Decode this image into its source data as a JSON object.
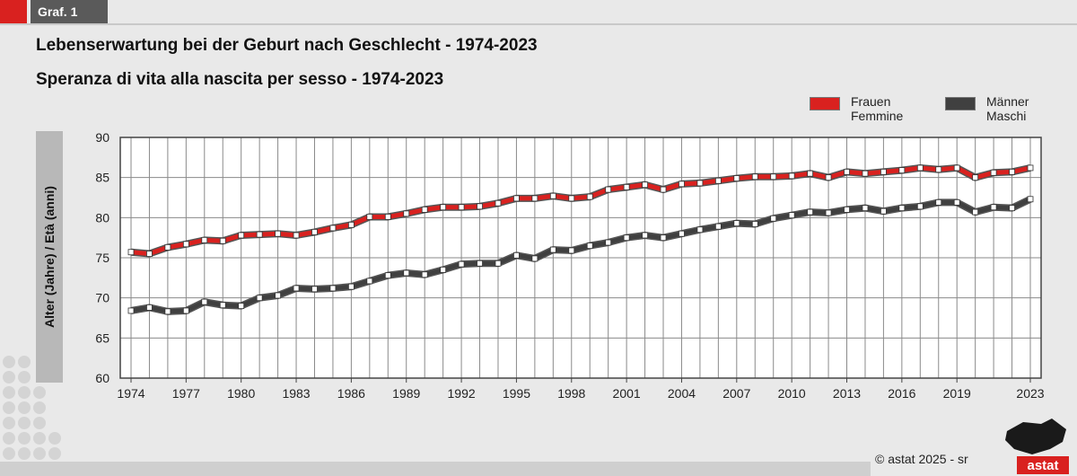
{
  "header": {
    "tag": "Graf. 1"
  },
  "chart_data": {
    "type": "line",
    "title": "Lebenserwartung bei der Geburt nach Geschlecht - 1974-2023",
    "subtitle": "Speranza di vita alla nascita per sesso - 1974-2023",
    "ylabel": "Alter  (Jahre) / Età (anni)",
    "xlabel": "",
    "ylim": [
      60,
      90
    ],
    "yticks": [
      60,
      65,
      70,
      75,
      80,
      85,
      90
    ],
    "xticks": [
      1974,
      1977,
      1980,
      1983,
      1986,
      1989,
      1992,
      1995,
      1998,
      2001,
      2004,
      2007,
      2010,
      2013,
      2016,
      2019,
      2023
    ],
    "x": [
      1974,
      1975,
      1976,
      1977,
      1978,
      1979,
      1980,
      1981,
      1982,
      1983,
      1984,
      1985,
      1986,
      1987,
      1988,
      1989,
      1990,
      1991,
      1992,
      1993,
      1994,
      1995,
      1996,
      1997,
      1998,
      1999,
      2000,
      2001,
      2002,
      2003,
      2004,
      2005,
      2006,
      2007,
      2008,
      2009,
      2010,
      2011,
      2012,
      2013,
      2014,
      2015,
      2016,
      2017,
      2018,
      2019,
      2020,
      2021,
      2022,
      2023
    ],
    "grid": true,
    "legend_position": "top-right",
    "series": [
      {
        "name": "Frauen\nFemmine",
        "name_de": "Frauen",
        "name_it": "Femmine",
        "color": "#d9211f",
        "values": [
          75.7,
          75.5,
          76.3,
          76.7,
          77.2,
          77.1,
          77.8,
          77.9,
          78.0,
          77.8,
          78.2,
          78.7,
          79.1,
          80.1,
          80.1,
          80.5,
          81.0,
          81.3,
          81.3,
          81.4,
          81.8,
          82.4,
          82.4,
          82.7,
          82.4,
          82.6,
          83.5,
          83.8,
          84.1,
          83.5,
          84.2,
          84.3,
          84.6,
          84.9,
          85.1,
          85.1,
          85.2,
          85.5,
          85.0,
          85.7,
          85.5,
          85.7,
          85.9,
          86.2,
          86.0,
          86.2,
          85.0,
          85.6,
          85.7,
          86.2
        ]
      },
      {
        "name": "Männer\nMaschi",
        "name_de": "Männer",
        "name_it": "Maschi",
        "color": "#404040",
        "values": [
          68.4,
          68.8,
          68.3,
          68.4,
          69.5,
          69.1,
          69.0,
          70.0,
          70.3,
          71.2,
          71.1,
          71.2,
          71.4,
          72.1,
          72.8,
          73.1,
          72.9,
          73.5,
          74.2,
          74.3,
          74.3,
          75.3,
          74.9,
          76.0,
          75.9,
          76.5,
          76.9,
          77.5,
          77.8,
          77.5,
          78.0,
          78.5,
          78.9,
          79.3,
          79.2,
          79.9,
          80.3,
          80.7,
          80.6,
          81.0,
          81.2,
          80.8,
          81.2,
          81.4,
          81.9,
          81.9,
          80.7,
          81.3,
          81.2,
          82.3
        ]
      }
    ]
  },
  "footer": {
    "copyright": "©  astat 2025 - sr",
    "logo_text": "astat"
  },
  "colors": {
    "accent_red": "#d9211f",
    "tag_grey": "#5a5a5a",
    "male_line": "#404040"
  }
}
